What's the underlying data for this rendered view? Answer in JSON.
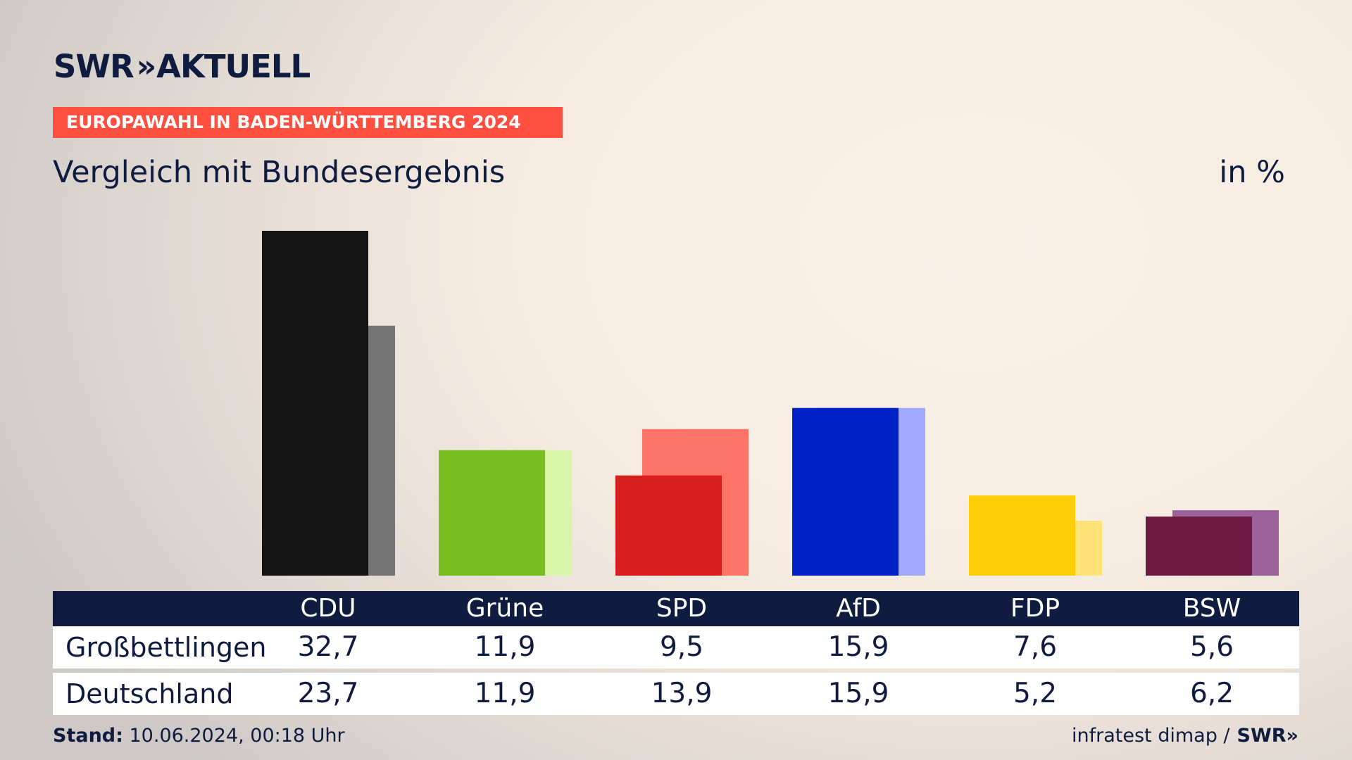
{
  "brand": {
    "name": "SWR",
    "chevrons": "»",
    "product": "AKTUELL"
  },
  "banner": "EUROPAWAHL IN BADEN-WÜRTTEMBERG 2024",
  "subtitle": "Vergleich mit Bundesergebnis",
  "unit": "in %",
  "colors": {
    "navy": "#0f1c3f",
    "banner": "#ff4f3f"
  },
  "chart_data": {
    "type": "bar",
    "categories": [
      "CDU",
      "Grüne",
      "SPD",
      "AfD",
      "FDP",
      "BSW"
    ],
    "series": [
      {
        "name": "Großbettlingen",
        "values": [
          32.7,
          11.9,
          9.5,
          15.9,
          7.6,
          5.6
        ],
        "colors": [
          "#141414",
          "#78be1e",
          "#d71f1f",
          "#0021c8",
          "#ffcd0a",
          "#6c1a41"
        ]
      },
      {
        "name": "Deutschland",
        "values": [
          23.7,
          11.9,
          13.9,
          15.9,
          5.2,
          6.2
        ],
        "colors": [
          "#737373",
          "#d7f5a8",
          "#ff7469",
          "#a0aaff",
          "#ffe277",
          "#9a619a"
        ]
      }
    ],
    "ylim": [
      0,
      32.7
    ],
    "grid": false,
    "legend": "table-below"
  },
  "footer": {
    "stand_label": "Stand:",
    "stand_value": " 10.06.2024, 00:18 Uhr",
    "source": "infratest dimap /",
    "source_brand": "SWR»"
  }
}
